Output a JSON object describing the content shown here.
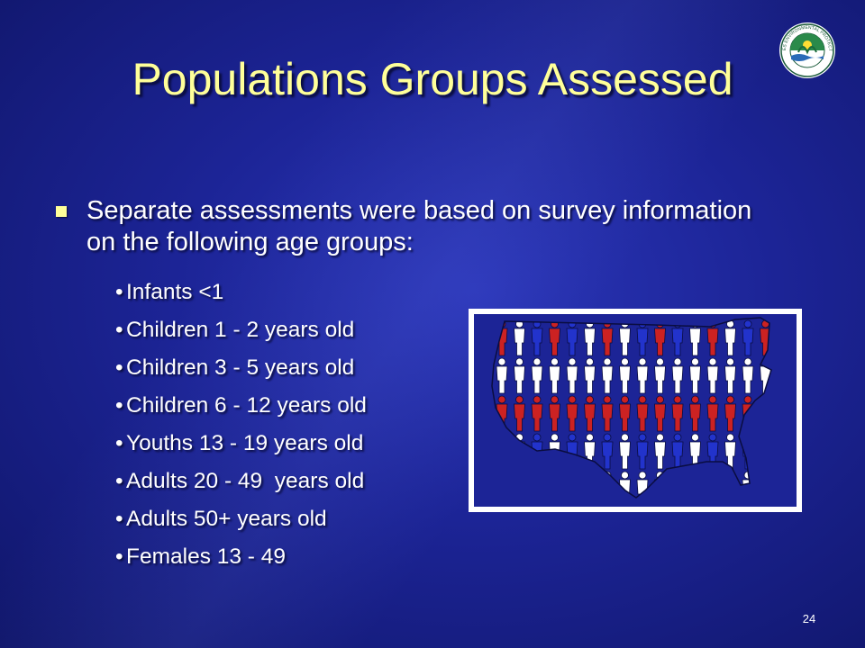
{
  "slide": {
    "title": "Populations Groups Assessed",
    "main_bullet": "Separate assessments were based on survey information on the following age groups:",
    "sub_bullets": [
      "Infants <1",
      "Children 1 - 2 years old",
      "Children 3 - 5 years old",
      "Children 6 - 12 years old",
      "Youths 13 - 19 years old",
      "Adults 20 - 49  years old",
      "Adults 50+ years old",
      "Females 13 - 49"
    ],
    "bullet_glyph": "•",
    "page_number": "24"
  },
  "logo": {
    "icon": "epa-seal-icon",
    "text": "UNITED STATES ENVIRONMENTAL PROTECTION AGENCY"
  },
  "picture": {
    "icon": "usa-map-people-icon"
  },
  "colors": {
    "title": "#ffff99",
    "text": "#ffffff",
    "background": "#1c2496",
    "figure_red": "#cc2222",
    "figure_blue": "#2233cc"
  }
}
